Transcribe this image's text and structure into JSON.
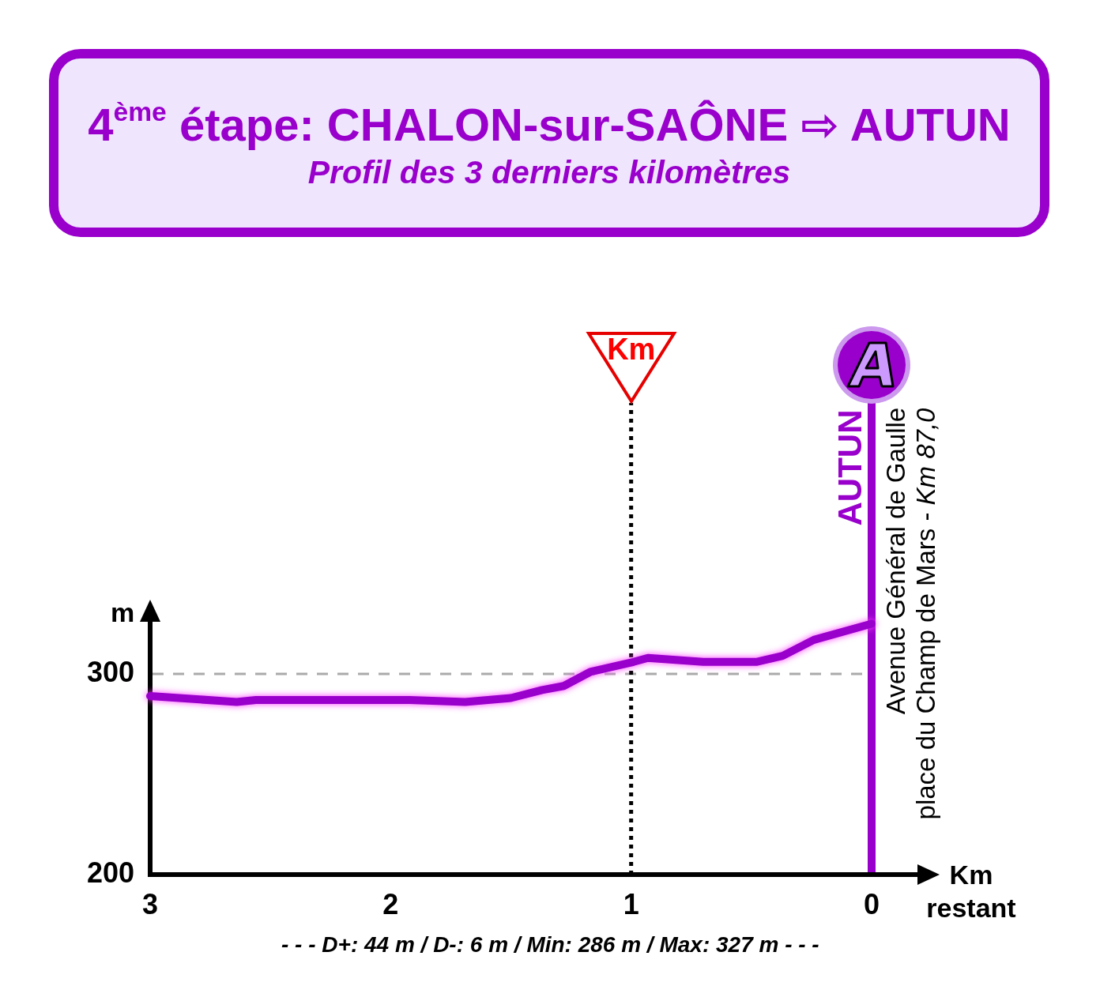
{
  "chart_data": {
    "type": "line",
    "title": "4$^{ème}$ étape: CHALON-sur-SAÔNE ⇨ AUTUN",
    "subtitle": "Profil des 3 derniers kilomètres",
    "xlabel": "Km restant",
    "ylabel": "m",
    "x": [
      3,
      2.64,
      2.56,
      2.29,
      1.92,
      1.69,
      1.5,
      1.37,
      1.28,
      1.17,
      0.99,
      0.93,
      0.7,
      0.48,
      0.37,
      0.24,
      0
    ],
    "series": [
      {
        "color": "#9900cc",
        "values": [
          289,
          286,
          287,
          287,
          287,
          286,
          288,
          292,
          294,
          301,
          306,
          308,
          306,
          306,
          309,
          317,
          325
        ]
      }
    ],
    "xlim": [
      3,
      0
    ],
    "xticks": [
      3,
      2,
      1,
      0
    ],
    "ylim": [
      200,
      326
    ],
    "yticks": [
      200,
      300
    ],
    "line_style": "solid",
    "ref_lines": [
      {
        "axis": "y",
        "value": 300,
        "color": "#aaaaaa",
        "line_style": "dashed"
      },
      {
        "axis": "x",
        "value": 1,
        "label": "Km",
        "color": "#000000",
        "line_style": "dotted"
      },
      {
        "axis": "x",
        "value": 0,
        "label": "AUTUN",
        "color": "#9900cc",
        "line_style": "solid"
      }
    ],
    "annotations": [
      "Avenue Général de Gaulle",
      "place du Champ de Mars -",
      "Km 87,0",
      "- - - D+: 44 m / D-: 6 m / Min: 286 m / Max: 327 m - - -"
    ]
  }
}
